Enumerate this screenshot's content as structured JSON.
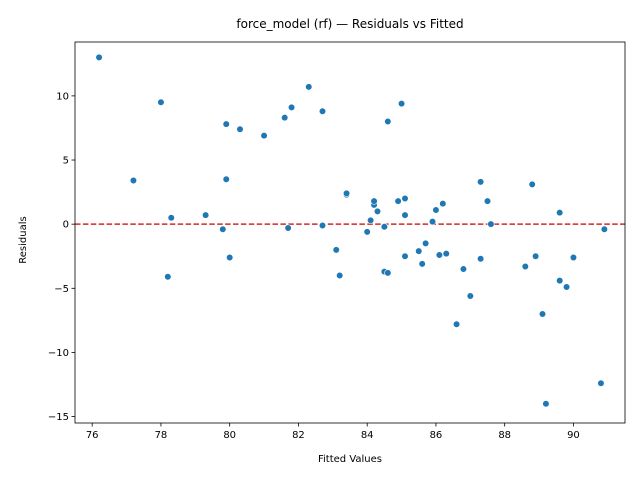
{
  "chart_data": {
    "type": "scatter",
    "title": "force_model (rf) — Residuals vs Fitted",
    "xlabel": "Fitted Values",
    "ylabel": "Residuals",
    "xlim": [
      75.5,
      91.5
    ],
    "ylim": [
      -15.5,
      14.2
    ],
    "xticks": [
      76,
      78,
      80,
      82,
      84,
      86,
      88,
      90
    ],
    "yticks": [
      -15,
      -10,
      -5,
      0,
      5,
      10
    ],
    "reference_line": {
      "y": 0,
      "color": "#d62728",
      "style": "dashed"
    },
    "point_color": "#1f77b4",
    "grid": false,
    "points": [
      {
        "x": 76.2,
        "y": 13.0
      },
      {
        "x": 77.2,
        "y": 3.4
      },
      {
        "x": 78.0,
        "y": 9.5
      },
      {
        "x": 78.2,
        "y": -4.1
      },
      {
        "x": 78.3,
        "y": 0.5
      },
      {
        "x": 79.3,
        "y": 0.7
      },
      {
        "x": 79.8,
        "y": -0.4
      },
      {
        "x": 79.9,
        "y": 7.8
      },
      {
        "x": 79.9,
        "y": 3.5
      },
      {
        "x": 80.0,
        "y": -2.6
      },
      {
        "x": 80.3,
        "y": 7.4
      },
      {
        "x": 81.0,
        "y": 6.9
      },
      {
        "x": 81.6,
        "y": 8.3
      },
      {
        "x": 81.7,
        "y": -0.3
      },
      {
        "x": 81.8,
        "y": 9.1
      },
      {
        "x": 82.3,
        "y": 10.7
      },
      {
        "x": 82.7,
        "y": 8.8
      },
      {
        "x": 82.7,
        "y": -0.1
      },
      {
        "x": 83.1,
        "y": -2.0
      },
      {
        "x": 83.2,
        "y": -4.0
      },
      {
        "x": 83.4,
        "y": 2.3
      },
      {
        "x": 83.4,
        "y": 2.4
      },
      {
        "x": 84.0,
        "y": -0.6
      },
      {
        "x": 84.1,
        "y": 0.3
      },
      {
        "x": 84.2,
        "y": 1.5
      },
      {
        "x": 84.2,
        "y": 1.8
      },
      {
        "x": 84.3,
        "y": 1.0
      },
      {
        "x": 84.5,
        "y": -3.7
      },
      {
        "x": 84.5,
        "y": -0.2
      },
      {
        "x": 84.6,
        "y": 8.0
      },
      {
        "x": 84.6,
        "y": -3.8
      },
      {
        "x": 84.9,
        "y": 1.8
      },
      {
        "x": 85.0,
        "y": 9.4
      },
      {
        "x": 85.1,
        "y": 2.0
      },
      {
        "x": 85.1,
        "y": 0.7
      },
      {
        "x": 85.1,
        "y": -2.5
      },
      {
        "x": 85.5,
        "y": -2.1
      },
      {
        "x": 85.6,
        "y": -3.1
      },
      {
        "x": 85.7,
        "y": -1.5
      },
      {
        "x": 85.9,
        "y": 0.2
      },
      {
        "x": 86.0,
        "y": 1.1
      },
      {
        "x": 86.1,
        "y": -2.4
      },
      {
        "x": 86.2,
        "y": 1.6
      },
      {
        "x": 86.3,
        "y": -2.3
      },
      {
        "x": 86.6,
        "y": -7.8
      },
      {
        "x": 86.8,
        "y": -3.5
      },
      {
        "x": 87.0,
        "y": -5.6
      },
      {
        "x": 87.3,
        "y": 3.3
      },
      {
        "x": 87.3,
        "y": -2.7
      },
      {
        "x": 87.5,
        "y": 1.8
      },
      {
        "x": 87.6,
        "y": 0.0
      },
      {
        "x": 88.6,
        "y": -3.3
      },
      {
        "x": 88.8,
        "y": 3.1
      },
      {
        "x": 88.9,
        "y": -2.5
      },
      {
        "x": 89.1,
        "y": -7.0
      },
      {
        "x": 89.2,
        "y": -14.0
      },
      {
        "x": 89.6,
        "y": 0.9
      },
      {
        "x": 89.6,
        "y": -4.4
      },
      {
        "x": 89.8,
        "y": -4.9
      },
      {
        "x": 90.0,
        "y": -2.6
      },
      {
        "x": 90.8,
        "y": -12.4
      },
      {
        "x": 90.9,
        "y": -0.4
      }
    ]
  }
}
